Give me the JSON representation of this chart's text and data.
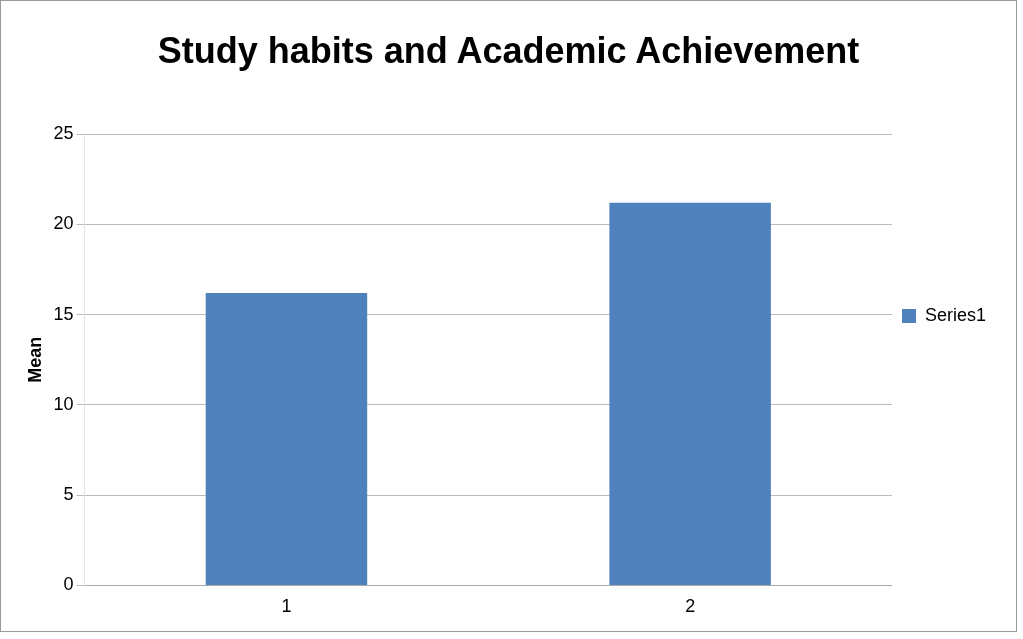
{
  "chart_data": {
    "type": "bar",
    "title": "Study habits and Academic Achievement",
    "ylabel": "Mean",
    "categories": [
      "1",
      "2"
    ],
    "series": [
      {
        "name": "Series1",
        "color": "#4f81bd",
        "values": [
          16.2,
          21.2
        ]
      }
    ],
    "ylim": [
      0,
      25
    ],
    "yticks": [
      0,
      5,
      10,
      15,
      20,
      25
    ],
    "grid": "y",
    "legend": "right"
  }
}
